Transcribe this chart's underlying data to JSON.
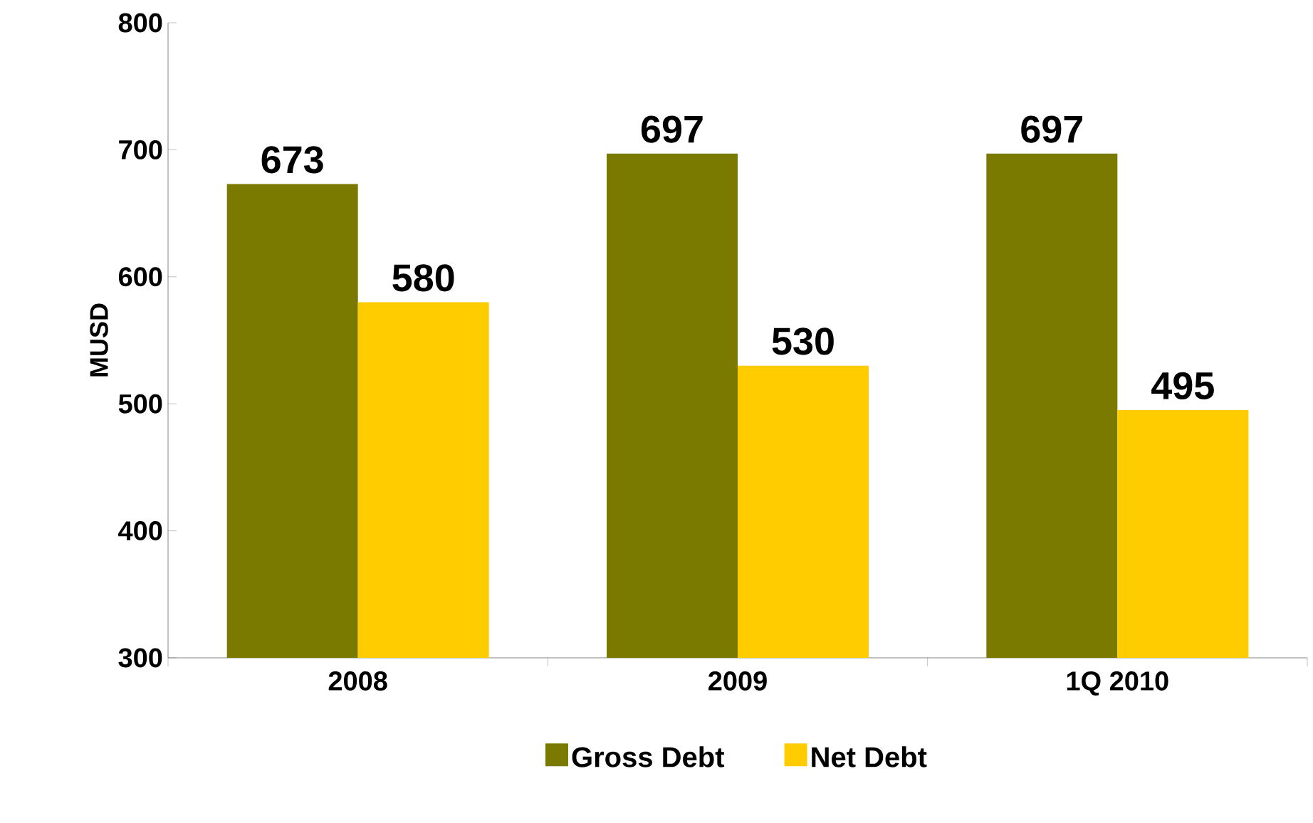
{
  "chart_data": {
    "type": "bar",
    "ylabel": "MUSD",
    "categories": [
      "2008",
      "2009",
      "1Q 2010"
    ],
    "series": [
      {
        "name": "Gross Debt",
        "color": "#7a7a00",
        "values": [
          673,
          697,
          697
        ]
      },
      {
        "name": "Net Debt",
        "color": "#ffcc00",
        "values": [
          580,
          530,
          495
        ]
      }
    ],
    "ylim": [
      300,
      800
    ],
    "yticks": [
      300,
      400,
      500,
      600,
      700,
      800
    ],
    "data_labels": true,
    "legend": "bottom",
    "grid": false
  }
}
